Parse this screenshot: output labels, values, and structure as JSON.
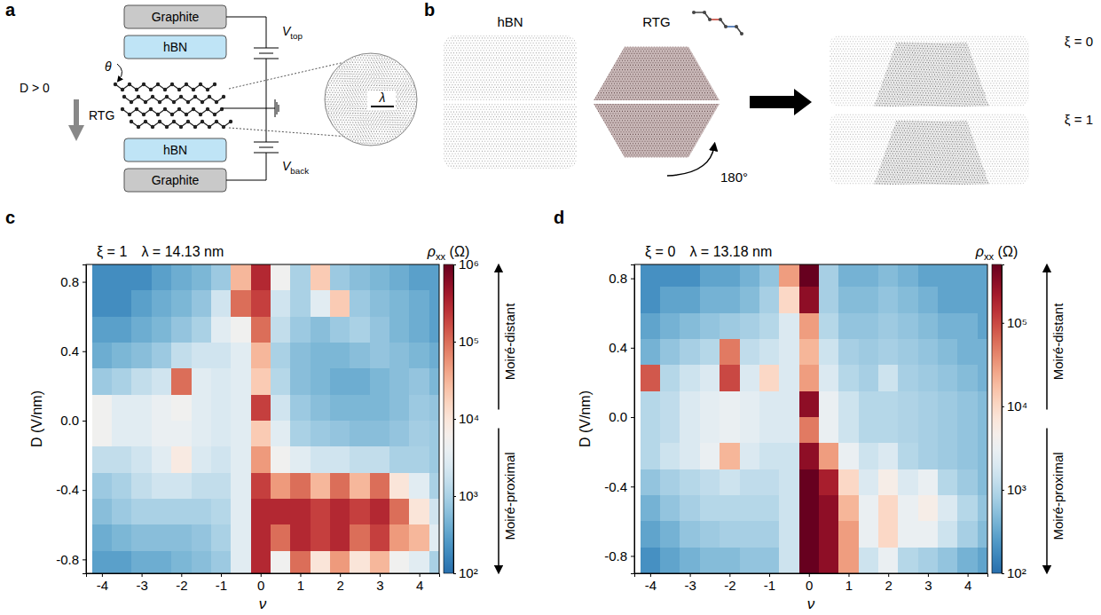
{
  "panel_letters": [
    "a",
    "b",
    "c",
    "d"
  ],
  "schematic": {
    "layers": [
      "Graphite",
      "hBN",
      "RTG",
      "hBN",
      "Graphite"
    ],
    "field": "D > 0",
    "angle": "θ",
    "moire_period": "λ",
    "gates": [
      "Vtop",
      "Vback"
    ]
  },
  "stacking": {
    "labels": [
      "hBN",
      "RTG"
    ],
    "rotation": "180°",
    "results": [
      "ξ = 0",
      "ξ = 1"
    ]
  },
  "chart_data": [
    {
      "type": "heatmap",
      "title": "ξ = 1",
      "subtitle": "λ = 14.13 nm",
      "xlabel": "ν",
      "ylabel": "D (V/nm)",
      "xlim": [
        -4.4,
        4.5
      ],
      "ylim": [
        -0.88,
        0.9
      ],
      "xticks": [
        -4,
        -3,
        -2,
        -1,
        0,
        1,
        2,
        3,
        4
      ],
      "yticks": [
        -0.8,
        -0.4,
        {
          "value": 0,
          "label": "0.0"
        },
        0.4,
        0.8
      ],
      "annotations": [
        "Moiré-distant",
        "Moiré-proximal"
      ],
      "colorbar": {
        "label": "ρxx (Ω)",
        "log": true,
        "lim": [
          100,
          1000000
        ],
        "ticks": [
          {
            "value": 100,
            "label": "10²"
          },
          {
            "value": 1000,
            "label": "10³"
          },
          {
            "value": 10000,
            "label": "10⁴"
          },
          {
            "value": 100000,
            "label": "10⁵"
          },
          {
            "value": 1000000,
            "label": "10⁶"
          }
        ]
      },
      "x": [
        -4,
        -3.5,
        -3,
        -2.5,
        -2,
        -1.5,
        -1,
        -0.5,
        0,
        0.5,
        1,
        1.5,
        2,
        2.5,
        3,
        3.5,
        4,
        4.5
      ],
      "y": [
        0.825,
        0.675,
        0.525,
        0.375,
        0.225,
        0.075,
        -0.075,
        -0.225,
        -0.375,
        -0.525,
        -0.675,
        -0.825
      ],
      "z": [
        [
          200,
          200,
          200,
          300,
          400,
          500,
          800,
          30000,
          300000,
          5000,
          1000,
          20000,
          800,
          600,
          500,
          400,
          300,
          300
        ],
        [
          200,
          200,
          300,
          400,
          500,
          700,
          2000,
          100000,
          200000,
          2000,
          1000,
          3000,
          20000,
          800,
          600,
          500,
          400,
          300
        ],
        [
          300,
          300,
          400,
          500,
          700,
          1000,
          3000,
          5000,
          100000,
          1500,
          800,
          600,
          800,
          1000,
          700,
          500,
          400,
          300
        ],
        [
          400,
          500,
          600,
          800,
          1500,
          2000,
          2000,
          3000,
          30000,
          1000,
          600,
          500,
          500,
          600,
          700,
          600,
          500,
          400
        ],
        [
          800,
          1000,
          1500,
          2000,
          100000,
          3000,
          2500,
          3000,
          20000,
          1200,
          600,
          500,
          400,
          400,
          500,
          600,
          700,
          500
        ],
        [
          5000,
          3000,
          3000,
          4000,
          5000,
          3000,
          2500,
          3000,
          200000,
          2000,
          800,
          600,
          500,
          500,
          500,
          600,
          800,
          700
        ],
        [
          5000,
          3000,
          3000,
          4000,
          4000,
          3000,
          2500,
          3000,
          20000,
          3000,
          1000,
          800,
          700,
          600,
          600,
          700,
          900,
          800
        ],
        [
          1500,
          1500,
          2000,
          3000,
          8000,
          2500,
          2000,
          3000,
          50000,
          5000,
          3000,
          2000,
          2000,
          1500,
          1500,
          1000,
          1000,
          800
        ],
        [
          800,
          1000,
          1500,
          2000,
          2000,
          1500,
          1500,
          3000,
          200000,
          50000,
          100000,
          30000,
          100000,
          30000,
          100000,
          10000,
          3000,
          1000
        ],
        [
          600,
          800,
          1000,
          1000,
          1000,
          1000,
          1200,
          3000,
          300000,
          300000,
          300000,
          200000,
          300000,
          200000,
          300000,
          100000,
          10000,
          2000
        ],
        [
          400,
          500,
          600,
          600,
          600,
          700,
          1000,
          3000,
          300000,
          100000,
          300000,
          200000,
          300000,
          100000,
          200000,
          50000,
          30000,
          3000
        ],
        [
          300,
          300,
          400,
          400,
          500,
          600,
          800,
          3000,
          300000,
          5000,
          100000,
          10000,
          50000,
          10000,
          30000,
          5000,
          3000,
          1000
        ]
      ]
    },
    {
      "type": "heatmap",
      "title": "ξ = 0",
      "subtitle": "λ = 13.18 nm",
      "xlabel": "ν",
      "ylabel": "D (V/nm)",
      "xlim": [
        -4.4,
        4.5
      ],
      "ylim": [
        -0.9,
        0.88
      ],
      "xticks": [
        -4,
        -3,
        -2,
        -1,
        0,
        1,
        2,
        3,
        4
      ],
      "yticks": [
        -0.8,
        -0.4,
        {
          "value": 0,
          "label": "0.0"
        },
        0.4,
        0.8
      ],
      "annotations": [
        "Moiré-distant",
        "Moiré-proximal"
      ],
      "colorbar": {
        "label": "ρxx (Ω)",
        "log": true,
        "lim": [
          100,
          500000
        ],
        "ticks": [
          {
            "value": 100,
            "label": "10²"
          },
          {
            "value": 1000,
            "label": "10³"
          },
          {
            "value": 10000,
            "label": "10⁴"
          },
          {
            "value": 100000,
            "label": "10⁵"
          }
        ]
      },
      "x": [
        -4,
        -3.5,
        -3,
        -2.5,
        -2,
        -1.5,
        -1,
        -0.5,
        0,
        0.5,
        1,
        1.5,
        2,
        2.5,
        3,
        3.5,
        4,
        4.5
      ],
      "y": [
        0.825,
        0.675,
        0.525,
        0.375,
        0.225,
        0.075,
        -0.075,
        -0.225,
        -0.375,
        -0.525,
        -0.675,
        -0.825
      ],
      "z": [
        [
          200,
          200,
          200,
          300,
          300,
          400,
          600,
          30000,
          500000,
          800,
          400,
          400,
          500,
          400,
          300,
          300,
          300,
          300
        ],
        [
          200,
          300,
          300,
          400,
          400,
          500,
          800,
          10000,
          300000,
          800,
          500,
          500,
          600,
          500,
          400,
          300,
          300,
          300
        ],
        [
          300,
          400,
          500,
          600,
          700,
          800,
          1000,
          2000,
          30000,
          1000,
          600,
          600,
          700,
          600,
          500,
          400,
          400,
          300
        ],
        [
          400,
          600,
          800,
          1000,
          50000,
          1200,
          1500,
          2000,
          20000,
          1500,
          800,
          700,
          800,
          700,
          600,
          500,
          400,
          400
        ],
        [
          80000,
          1000,
          1500,
          2000,
          100000,
          2000,
          10000,
          2000,
          30000,
          2000,
          1000,
          800,
          1500,
          800,
          700,
          600,
          500,
          400
        ],
        [
          1000,
          1200,
          2000,
          2500,
          3000,
          2500,
          2000,
          2000,
          300000,
          3000,
          1500,
          1000,
          1000,
          900,
          800,
          700,
          600,
          500
        ],
        [
          1000,
          1200,
          2000,
          2500,
          3000,
          2500,
          2000,
          2000,
          50000,
          3000,
          1500,
          1000,
          1000,
          900,
          800,
          700,
          600,
          500
        ],
        [
          1000,
          1500,
          2000,
          3000,
          20000,
          2000,
          1500,
          1500,
          300000,
          30000,
          3000,
          1500,
          2000,
          1000,
          800,
          700,
          600,
          500
        ],
        [
          600,
          800,
          1000,
          1200,
          1500,
          1200,
          1200,
          1500,
          500000,
          200000,
          10000,
          2000,
          5000,
          2000,
          3000,
          1000,
          700,
          500
        ],
        [
          400,
          600,
          800,
          1000,
          1000,
          1000,
          1000,
          1500,
          500000,
          300000,
          20000,
          3000,
          10000,
          3000,
          5000,
          2000,
          1000,
          600
        ],
        [
          300,
          400,
          600,
          700,
          800,
          800,
          800,
          1500,
          500000,
          300000,
          30000,
          3000,
          10000,
          3000,
          3000,
          1500,
          800,
          500
        ],
        [
          200,
          300,
          400,
          500,
          500,
          600,
          600,
          1500,
          500000,
          300000,
          30000,
          1500,
          3000,
          1000,
          800,
          600,
          400,
          300
        ]
      ]
    }
  ]
}
